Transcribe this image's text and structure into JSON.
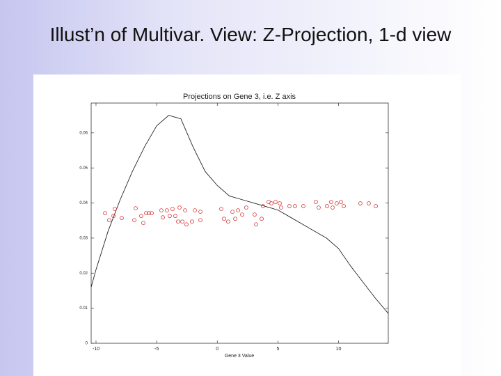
{
  "slide": {
    "title": "Illust’n of Multivar. View: Z-Projection, 1-d view"
  },
  "chart_data": {
    "type": "line",
    "title": "Projections on Gene 3, i.e. Z axis",
    "xlabel": "Gene 3 Value",
    "xlim": [
      -10.4,
      14.1
    ],
    "ylim": [
      0,
      0.0685
    ],
    "xticks": [
      -10,
      -5,
      0,
      5,
      10
    ],
    "yticks": [
      0,
      0.01,
      0.02,
      0.03,
      0.04,
      0.05,
      0.06
    ],
    "series": [
      {
        "type": "line",
        "color": "#222222",
        "x": [
          -10.4,
          -10,
          -9,
          -8,
          -7,
          -6,
          -5,
          -4,
          -3,
          -2,
          -1,
          0,
          1,
          2,
          3,
          4,
          5,
          6,
          7,
          8,
          9,
          10,
          11,
          12,
          13,
          14.1
        ],
        "values": [
          0.016,
          0.021,
          0.032,
          0.041,
          0.049,
          0.056,
          0.062,
          0.065,
          0.064,
          0.056,
          0.049,
          0.045,
          0.042,
          0.041,
          0.04,
          0.039,
          0.038,
          0.036,
          0.034,
          0.032,
          0.03,
          0.027,
          0.022,
          0.0175,
          0.013,
          0.0085
        ]
      },
      {
        "type": "scatter",
        "color": "#d83a3a",
        "x": [
          -9.25,
          -8.91,
          -8.56,
          -8.45,
          -7.88,
          -6.73,
          -6.84,
          -6.27,
          -6.1,
          -5.87,
          -5.64,
          -5.41,
          -4.61,
          -4.49,
          -4.15,
          -3.92,
          -3.69,
          -3.46,
          -3.23,
          -3.11,
          -2.88,
          -2.65,
          -2.54,
          -2.08,
          -1.85,
          -1.39,
          -1.39,
          0.33,
          0.56,
          0.9,
          1.25,
          1.48,
          1.71,
          2.05,
          2.39,
          3.08,
          3.2,
          3.66,
          3.77,
          4.23,
          4.46,
          4.8,
          5.15,
          5.26,
          5.95,
          6.41,
          7.1,
          8.13,
          8.36,
          9.05,
          9.39,
          9.51,
          9.85,
          10.2,
          10.43,
          11.8,
          12.49,
          13.07
        ],
        "values": [
          0.0371,
          0.0351,
          0.0363,
          0.0383,
          0.0357,
          0.0385,
          0.0351,
          0.0363,
          0.0343,
          0.0371,
          0.0371,
          0.0371,
          0.0379,
          0.0359,
          0.0379,
          0.0363,
          0.0383,
          0.0363,
          0.0347,
          0.0387,
          0.0347,
          0.0379,
          0.0339,
          0.0347,
          0.0379,
          0.0351,
          0.0375,
          0.0383,
          0.0355,
          0.0347,
          0.0375,
          0.0355,
          0.0379,
          0.0367,
          0.0387,
          0.0367,
          0.0339,
          0.0355,
          0.0391,
          0.0403,
          0.0399,
          0.0403,
          0.0399,
          0.0387,
          0.0391,
          0.0391,
          0.0391,
          0.0403,
          0.0387,
          0.0391,
          0.0403,
          0.0387,
          0.0399,
          0.0403,
          0.0391,
          0.0399,
          0.0399,
          0.0391
        ]
      }
    ]
  }
}
